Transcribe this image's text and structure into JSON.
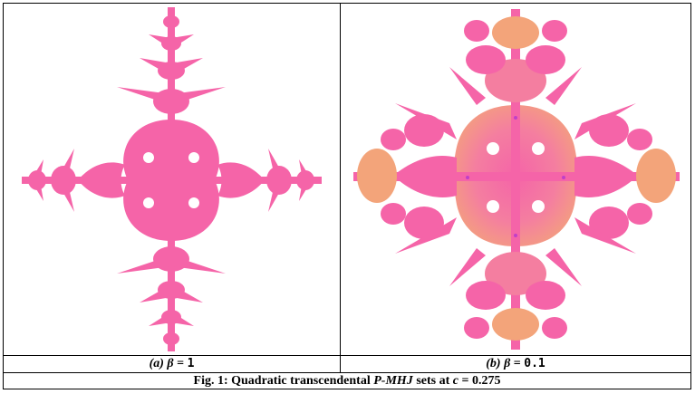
{
  "figure": {
    "panels": [
      {
        "label": "(a) β",
        "eq": "=",
        "value": "1"
      },
      {
        "label": "(b) β",
        "eq": "=",
        "value": "0.1"
      }
    ],
    "caption": {
      "prefix": "Fig. 1: Quadratic transcendental ",
      "italic_term": "P-MHJ",
      "middle": " sets at ",
      "italic_var": "c",
      "suffix": " = 0.275"
    },
    "colors": {
      "primary": "#f564a8",
      "secondary": "#f3a47a",
      "accent": "#c040c8"
    }
  }
}
